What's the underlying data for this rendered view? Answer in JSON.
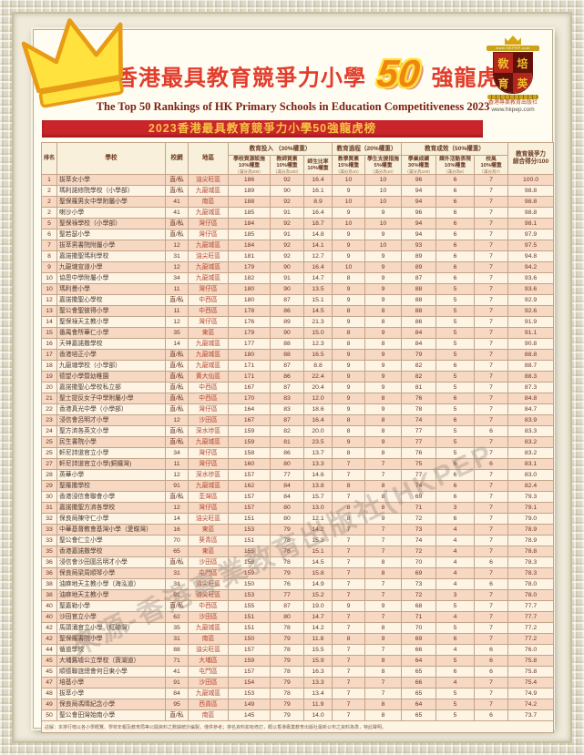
{
  "page": {
    "title_zh_prefix": "2023香港最具教育競爭力小學",
    "title_50": "50",
    "title_zh_suffix": "強龍虎榜",
    "title_en": "The Top 50 Rankings of HK Primary Schools in Education Competitiveness 2023",
    "banner": "2023香港最具教育競爭力小學50強龍虎榜"
  },
  "logo": {
    "band": "www.HKPEP.com",
    "shield_chars": [
      "敎",
      "培",
      "育",
      "英"
    ],
    "publisher": "香港專業教育出版社",
    "url": "www.hkpep.com"
  },
  "watermark": "來源-香港專業教育出版社(HKPEP",
  "colors": {
    "banner_red": "#c9252b",
    "banner_gold": "#f6c344",
    "title_red": "#e23c2c",
    "fifty_orange": "#f1860e",
    "row_pink": "#f6d8c3",
    "row_cream": "#fdf4e4"
  },
  "table": {
    "headers": {
      "rank": "排名",
      "school": "學校",
      "net": "校網",
      "district": "地區",
      "group_input": "教育投入 （30%權重）",
      "group_process": "教育過程（20%權重）",
      "group_outcome": "教育成效（50%權重）",
      "score_line1": "教育競爭力",
      "score_line2": "綜合得分/100",
      "sub": [
        {
          "t": "學校資源設施",
          "w": "10%權重",
          "m": "（滿分為200）"
        },
        {
          "t": "教師質素",
          "w": "10%權重",
          "m": "（滿分為100）"
        },
        {
          "t": "師生比率",
          "w": "10%權重",
          "m": ""
        },
        {
          "t": "教學質素",
          "w": "15%權重",
          "m": "（滿分為10）"
        },
        {
          "t": "學生支援措施",
          "w": "5%權重",
          "m": "（滿分為10）"
        },
        {
          "t": "學業成績",
          "w": "30%權重",
          "m": "（滿分為100）"
        },
        {
          "t": "課外活動表現",
          "w": "10%權重",
          "m": "（滿分為6）"
        },
        {
          "t": "校風",
          "w": "10%權重",
          "m": "（滿分為7）"
        }
      ]
    },
    "rows": [
      [
        "1",
        "拔萃女小學",
        "直/私",
        "油尖旺區",
        "186",
        "92",
        "16.4",
        "10",
        "10",
        "96",
        "6",
        "7",
        "100.0"
      ],
      [
        "2",
        "瑪利諾修院學校（小學部）",
        "直/私",
        "九龍城區",
        "189",
        "90",
        "16.1",
        "9",
        "10",
        "94",
        "6",
        "7",
        "98.8"
      ],
      [
        "2",
        "聖保羅男女中學附屬小學",
        "41",
        "南區",
        "188",
        "92",
        "8.9",
        "10",
        "10",
        "94",
        "6",
        "7",
        "98.8"
      ],
      [
        "2",
        "喇沙小學",
        "41",
        "九龍城區",
        "185",
        "91",
        "16.4",
        "9",
        "9",
        "96",
        "6",
        "7",
        "98.8"
      ],
      [
        "5",
        "聖保祿學校（小學部）",
        "直/私",
        "灣仔區",
        "184",
        "92",
        "18.7",
        "10",
        "10",
        "94",
        "6",
        "7",
        "98.1"
      ],
      [
        "6",
        "聖若瑟小學",
        "直/私",
        "灣仔區",
        "185",
        "91",
        "14.8",
        "9",
        "9",
        "94",
        "6",
        "7",
        "97.9"
      ],
      [
        "7",
        "拔萃男書院附屬小學",
        "12",
        "九龍城區",
        "184",
        "92",
        "14.1",
        "9",
        "10",
        "93",
        "6",
        "7",
        "97.5"
      ],
      [
        "8",
        "嘉諾撒聖瑪利學校",
        "31",
        "油尖旺區",
        "181",
        "92",
        "12.7",
        "9",
        "9",
        "89",
        "6",
        "7",
        "94.8"
      ],
      [
        "9",
        "九龍塘宣道小學",
        "12",
        "九龍城區",
        "179",
        "90",
        "16.4",
        "10",
        "9",
        "89",
        "6",
        "7",
        "94.2"
      ],
      [
        "10",
        "協恩中學附屬小學",
        "34",
        "九龍城區",
        "182",
        "91",
        "14.7",
        "8",
        "9",
        "87",
        "6",
        "7",
        "93.6"
      ],
      [
        "10",
        "瑪利曼小學",
        "11",
        "灣仔區",
        "180",
        "90",
        "13.5",
        "9",
        "9",
        "88",
        "5",
        "7",
        "93.6"
      ],
      [
        "12",
        "嘉諾撒聖心學校",
        "直/私",
        "中西區",
        "180",
        "87",
        "15.1",
        "9",
        "9",
        "88",
        "5",
        "7",
        "92.9"
      ],
      [
        "13",
        "聖公會聖彼得小學",
        "11",
        "中西區",
        "178",
        "86",
        "14.5",
        "8",
        "8",
        "88",
        "5",
        "7",
        "92.6"
      ],
      [
        "14",
        "聖保祿天主教小學",
        "12",
        "灣仔區",
        "176",
        "89",
        "21.3",
        "9",
        "8",
        "86",
        "5",
        "7",
        "91.9"
      ],
      [
        "15",
        "番禺會所華仁小學",
        "35",
        "東區",
        "179",
        "90",
        "15.0",
        "8",
        "9",
        "84",
        "5",
        "7",
        "91.1"
      ],
      [
        "16",
        "天神嘉諾撒學校",
        "14",
        "九龍城區",
        "177",
        "88",
        "12.3",
        "8",
        "8",
        "84",
        "5",
        "7",
        "90.8"
      ],
      [
        "17",
        "香港培正小學",
        "直/私",
        "九龍城區",
        "180",
        "88",
        "16.5",
        "9",
        "9",
        "79",
        "5",
        "7",
        "88.8"
      ],
      [
        "18",
        "九龍塘學校（小學部）",
        "直/私",
        "九龍城區",
        "171",
        "87",
        "8.8",
        "9",
        "9",
        "82",
        "6",
        "7",
        "88.7"
      ],
      [
        "19",
        "德望小學暨幼稚園",
        "直/私",
        "黃大仙區",
        "171",
        "86",
        "22.4",
        "9",
        "9",
        "82",
        "5",
        "7",
        "88.3"
      ],
      [
        "20",
        "嘉諾撒聖心學校私立部",
        "直/私",
        "中西區",
        "167",
        "87",
        "20.4",
        "9",
        "9",
        "81",
        "5",
        "7",
        "87.3"
      ],
      [
        "21",
        "聖士提反女子中學附屬小學",
        "直/私",
        "中西區",
        "170",
        "83",
        "12.0",
        "9",
        "8",
        "76",
        "6",
        "7",
        "84.8"
      ],
      [
        "22",
        "香港真光中學（小學部）",
        "直/私",
        "灣仔區",
        "164",
        "83",
        "18.6",
        "9",
        "9",
        "78",
        "5",
        "7",
        "84.7"
      ],
      [
        "23",
        "浸信會呂明才小學",
        "12",
        "沙田區",
        "167",
        "87",
        "16.4",
        "8",
        "8",
        "74",
        "6",
        "7",
        "83.9"
      ],
      [
        "24",
        "聖方濟各英文小學",
        "直/私",
        "深水埗區",
        "159",
        "82",
        "20.0",
        "8",
        "8",
        "77",
        "5",
        "6",
        "83.3"
      ],
      [
        "25",
        "民生書院小學",
        "直/私",
        "九龍城區",
        "159",
        "81",
        "23.5",
        "9",
        "9",
        "77",
        "5",
        "7",
        "83.2"
      ],
      [
        "25",
        "軒尼詩道官立小學",
        "34",
        "灣仔區",
        "158",
        "86",
        "13.7",
        "8",
        "8",
        "76",
        "5",
        "7",
        "83.2"
      ],
      [
        "27",
        "軒尼詩道官立小學(銅鑼灣)",
        "11",
        "灣仔區",
        "160",
        "80",
        "13.3",
        "7",
        "7",
        "75",
        "6",
        "6",
        "83.1"
      ],
      [
        "28",
        "英華小學",
        "12",
        "深水埗區",
        "157",
        "77",
        "14.6",
        "7",
        "7",
        "77",
        "6",
        "7",
        "83.0"
      ],
      [
        "29",
        "聖羅撒學校",
        "91",
        "九龍城區",
        "162",
        "84",
        "13.8",
        "8",
        "8",
        "74",
        "6",
        "7",
        "82.4"
      ],
      [
        "30",
        "香港浸信會聯會小學",
        "直/私",
        "荃灣區",
        "157",
        "84",
        "15.7",
        "7",
        "8",
        "69",
        "6",
        "7",
        "79.3"
      ],
      [
        "31",
        "嘉諾撒聖方濟各學校",
        "12",
        "灣仔區",
        "157",
        "80",
        "13.0",
        "8",
        "8",
        "71",
        "3",
        "7",
        "79.1"
      ],
      [
        "32",
        "保良局陳守仁小學",
        "14",
        "油尖旺區",
        "151",
        "80",
        "12.1",
        "8",
        "9",
        "72",
        "6",
        "7",
        "79.0"
      ],
      [
        "33",
        "中華基督教會基灣小學（愛蝶灣）",
        "16",
        "東區",
        "153",
        "79",
        "14.2",
        "7",
        "7",
        "73",
        "4",
        "7",
        "78.9"
      ],
      [
        "33",
        "聖公會仁立小學",
        "70",
        "葵青區",
        "151",
        "78",
        "15.3",
        "7",
        "7",
        "74",
        "4",
        "7",
        "78.9"
      ],
      [
        "35",
        "香港嘉諾撒學校",
        "65",
        "東區",
        "155",
        "78",
        "15.1",
        "7",
        "7",
        "72",
        "4",
        "7",
        "78.8"
      ],
      [
        "36",
        "浸信會沙田圍呂明才小學",
        "直/私",
        "沙田區",
        "158",
        "78",
        "14.5",
        "7",
        "8",
        "70",
        "4",
        "6",
        "78.3"
      ],
      [
        "36",
        "保良局梁周順琴小學",
        "31",
        "屯門區",
        "159",
        "79",
        "15.8",
        "7",
        "8",
        "69",
        "4",
        "7",
        "78.3"
      ],
      [
        "38",
        "油麻地天主教小學（海泓道）",
        "31",
        "油尖旺區",
        "150",
        "76",
        "14.9",
        "7",
        "7",
        "73",
        "4",
        "6",
        "78.0"
      ],
      [
        "38",
        "油麻地天主教小學",
        "91",
        "油尖旺區",
        "153",
        "77",
        "15.2",
        "7",
        "7",
        "72",
        "3",
        "7",
        "78.0"
      ],
      [
        "40",
        "聖嘉勒小學",
        "直/私",
        "中西區",
        "155",
        "87",
        "19.0",
        "9",
        "9",
        "68",
        "5",
        "7",
        "77.7"
      ],
      [
        "40",
        "沙田官立小學",
        "62",
        "沙田區",
        "151",
        "80",
        "14.7",
        "7",
        "7",
        "71",
        "4",
        "7",
        "77.7"
      ],
      [
        "42",
        "馬頭涌官立小學（紅磡灣）",
        "35",
        "九龍城區",
        "151",
        "78",
        "14.2",
        "7",
        "8",
        "70",
        "5",
        "7",
        "77.2"
      ],
      [
        "42",
        "聖保羅書院小學",
        "31",
        "南區",
        "150",
        "79",
        "11.8",
        "8",
        "9",
        "69",
        "6",
        "7",
        "77.2"
      ],
      [
        "44",
        "循道學校",
        "88",
        "油尖旺區",
        "157",
        "78",
        "15.5",
        "7",
        "7",
        "66",
        "4",
        "6",
        "76.0"
      ],
      [
        "45",
        "大埔舊墟公立學校（寶湖道）",
        "71",
        "大埔區",
        "159",
        "79",
        "15.9",
        "7",
        "8",
        "64",
        "5",
        "6",
        "75.8"
      ],
      [
        "45",
        "順德聯誼總會何日東小學",
        "41",
        "屯門區",
        "157",
        "78",
        "16.3",
        "7",
        "8",
        "65",
        "6",
        "6",
        "75.8"
      ],
      [
        "47",
        "培基小學",
        "91",
        "沙田區",
        "154",
        "79",
        "13.3",
        "7",
        "7",
        "66",
        "4",
        "7",
        "75.4"
      ],
      [
        "48",
        "拔萃小學",
        "84",
        "九龍城區",
        "153",
        "78",
        "13.4",
        "7",
        "7",
        "65",
        "5",
        "7",
        "74.9"
      ],
      [
        "49",
        "保良局馮晴紀念小學",
        "95",
        "西貢區",
        "149",
        "79",
        "11.9",
        "7",
        "8",
        "64",
        "5",
        "7",
        "74.2"
      ],
      [
        "50",
        "聖公會田灣始南小學",
        "直/私",
        "南區",
        "145",
        "79",
        "14.0",
        "7",
        "8",
        "65",
        "5",
        "6",
        "73.7"
      ]
    ]
  },
  "footnote": "註解：本排行榜以各小學概覽、學校年報及教育局等公開資料之數據統計編製，僅供參考；排名資料如有修訂，概以香港專業教育出版社最新公布之資料為準，特此聲明。"
}
